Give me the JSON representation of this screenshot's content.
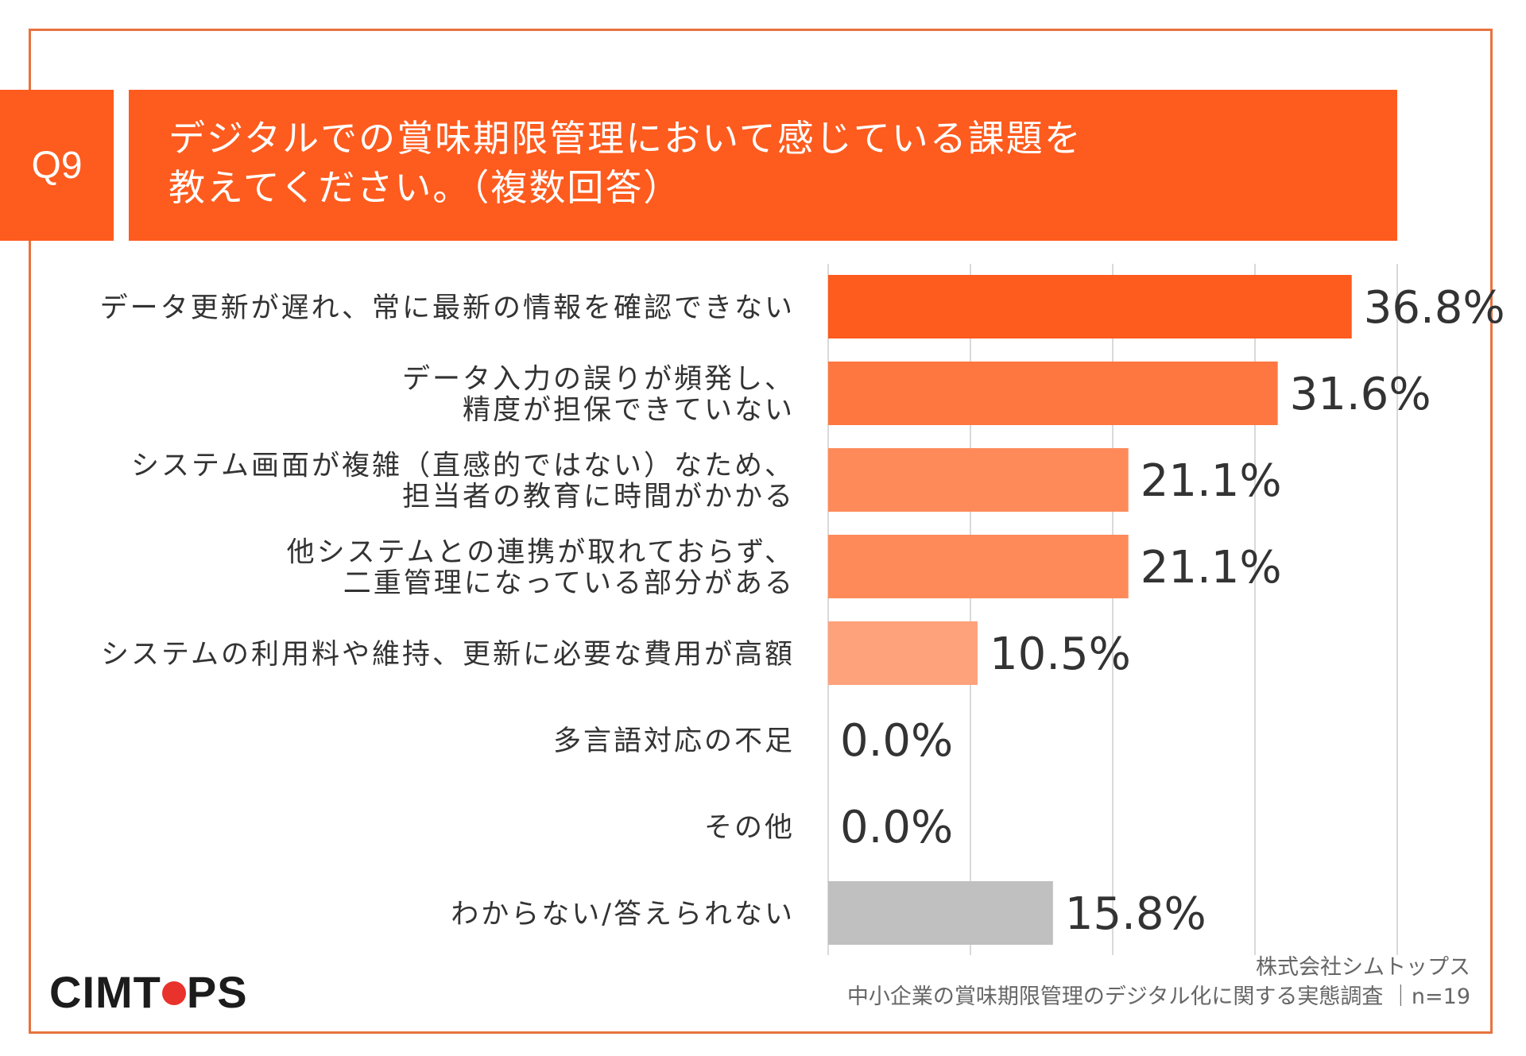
{
  "header": {
    "q_number": "Q9",
    "title_line1": "デジタルでの賞味期限管理において感じている課題を",
    "title_line2": "教えてください。（複数回答）"
  },
  "footer": {
    "logo_before": "CIMT",
    "logo_after": "PS",
    "company": "株式会社シムトップス",
    "survey": "中小企業の賞味期限管理のデジタル化に関する実態調査 ｜n=19"
  },
  "chart_data": {
    "type": "bar",
    "orientation": "horizontal",
    "unit": "%",
    "categories": [
      [
        "データ更新が遅れ、常に最新の情報を確認できない"
      ],
      [
        "データ入力の誤りが頻発し、",
        "精度が担保できていない"
      ],
      [
        "システム画面が複雑（直感的ではない）なため、",
        "担当者の教育に時間がかかる"
      ],
      [
        "他システムとの連携が取れておらず、",
        "二重管理になっている部分がある"
      ],
      [
        "システムの利用料や維持、更新に必要な費用が高額"
      ],
      [
        "多言語対応の不足"
      ],
      [
        "その他"
      ],
      [
        "わからない/答えられない"
      ]
    ],
    "values": [
      36.8,
      31.6,
      21.1,
      21.1,
      10.5,
      0.0,
      0.0,
      15.8
    ],
    "value_labels": [
      "36.8%",
      "31.6%",
      "21.1%",
      "21.1%",
      "10.5%",
      "0.0%",
      "0.0%",
      "15.8%"
    ],
    "colors": [
      "#fe5b1e",
      "#fe7740",
      "#fe8a5a",
      "#fe8a5a",
      "#fea27c",
      "#fea27c",
      "#fea27c",
      "#c0c0c0"
    ],
    "xlim": [
      0,
      40
    ],
    "grid": true,
    "gridlines": [
      0,
      10,
      20,
      30,
      40
    ]
  }
}
